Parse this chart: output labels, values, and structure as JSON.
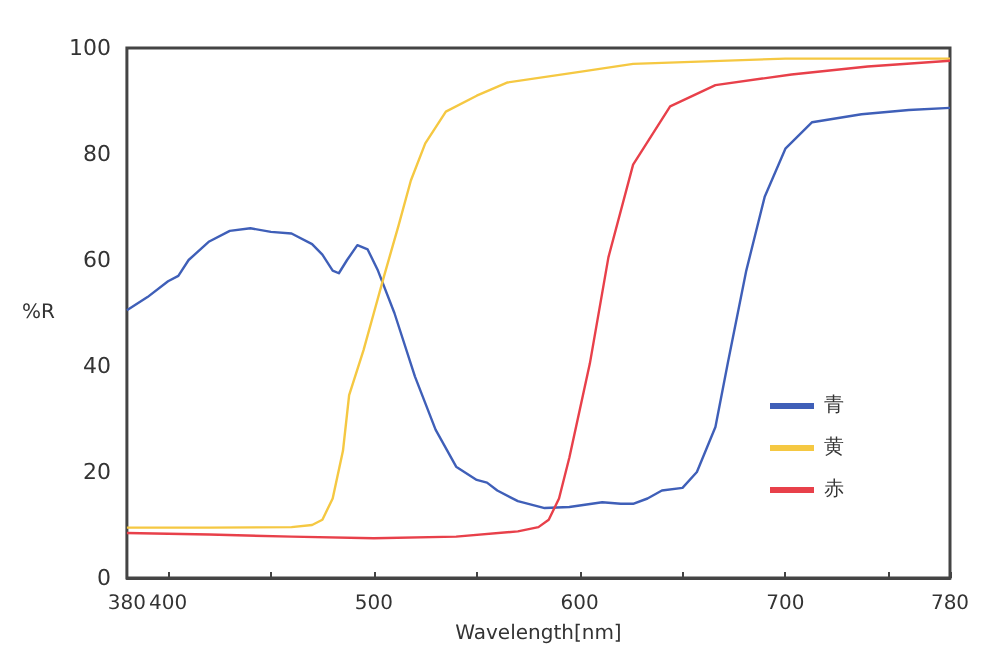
{
  "chart_data": {
    "type": "line",
    "xlabel": "Wavelength[nm]",
    "ylabel": "%R",
    "xlim": [
      380,
      780
    ],
    "ylim": [
      0,
      100
    ],
    "xticks": [
      380,
      400,
      {
        "value": 450,
        "label": null
      },
      500,
      {
        "value": 550,
        "label": null
      },
      600,
      {
        "value": 650,
        "label": null
      },
      700,
      {
        "value": 750,
        "label": null
      },
      780
    ],
    "yticks": [
      0,
      20,
      40,
      60,
      80,
      100
    ],
    "grid": false,
    "legend": "right",
    "marker": "none",
    "line_style": "solid",
    "series": [
      {
        "name": "青",
        "color": "#3f5fb8",
        "x": [
          380,
          390,
          400,
          405,
          410,
          420,
          430,
          440,
          450,
          460,
          470,
          475,
          480,
          483,
          487,
          492,
          497,
          502,
          510,
          520,
          530,
          540,
          550,
          555,
          560,
          570,
          583,
          595,
          611,
          620,
          626,
          633,
          640,
          650,
          657,
          666,
          672,
          681,
          690,
          700,
          713,
          737,
          760,
          780
        ],
        "values": [
          50.5,
          53,
          56,
          57,
          60,
          63.5,
          65.5,
          66,
          65.3,
          65,
          63,
          61,
          58,
          57.5,
          60,
          62.8,
          62,
          58,
          50,
          38,
          28,
          21,
          18.5,
          18,
          16.5,
          14.5,
          13.2,
          13.4,
          14.3,
          14,
          14,
          15,
          16.5,
          17,
          20,
          28.5,
          40.5,
          58,
          72,
          81,
          86,
          87.5,
          88.3,
          88.7
        ]
      },
      {
        "name": "黄",
        "color": "#f5c842",
        "x": [
          380,
          420,
          460,
          470,
          475,
          480,
          485,
          488,
          495,
          500,
          505,
          512,
          518,
          525,
          535,
          550,
          565,
          600,
          626,
          700,
          780
        ],
        "values": [
          9.5,
          9.5,
          9.6,
          10,
          11,
          15,
          24,
          34.5,
          43,
          50,
          57,
          66.5,
          75,
          82,
          88,
          91,
          93.5,
          95.5,
          97,
          98,
          98
        ]
      },
      {
        "name": "赤",
        "color": "#e8404a",
        "x": [
          380,
          420,
          460,
          500,
          540,
          570,
          580,
          585,
          590,
          595,
          605,
          614,
          626,
          644,
          666,
          703,
          740,
          780
        ],
        "values": [
          8.5,
          8.2,
          7.8,
          7.5,
          7.8,
          8.8,
          9.6,
          11,
          15,
          22.7,
          40.5,
          60.5,
          78,
          89,
          93,
          95,
          96.5,
          97.6
        ]
      }
    ]
  }
}
